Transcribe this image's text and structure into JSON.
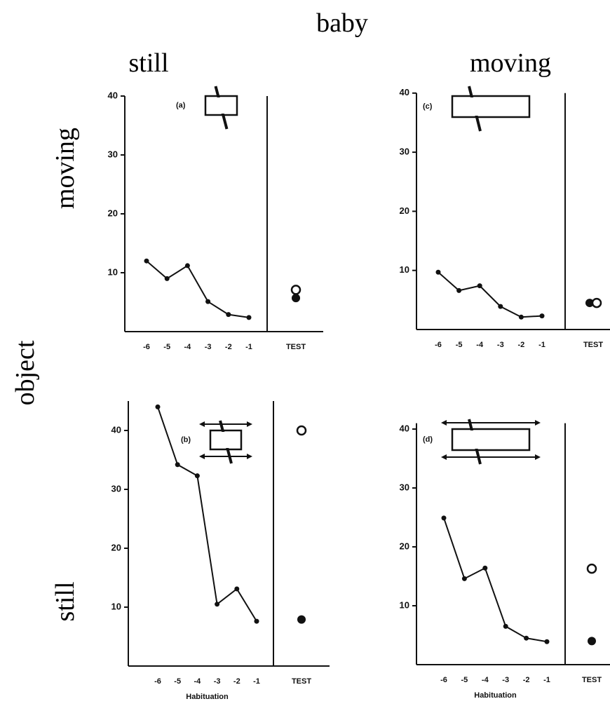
{
  "figure": {
    "title": "baby",
    "columns": [
      "still",
      "moving"
    ],
    "row_title": "object",
    "rows": [
      "moving",
      "still"
    ]
  },
  "chart_data": [
    {
      "type": "line",
      "label": "(a)",
      "x": [
        -6,
        -5,
        -4,
        -3,
        -2,
        -1
      ],
      "values": [
        12,
        9,
        11.2,
        5.1,
        2.9,
        2.4
      ],
      "test_label": "TEST",
      "test_open": 7.1,
      "test_filled": 5.7,
      "ylim": [
        0,
        40
      ],
      "yticks": [
        10,
        20,
        30,
        40
      ]
    },
    {
      "type": "line",
      "label": "(c)",
      "x": [
        -6,
        -5,
        -4,
        -3,
        -2,
        -1
      ],
      "values": [
        9.7,
        6.6,
        7.4,
        3.9,
        2.1,
        2.3
      ],
      "test_label": "TEST",
      "test_open": 4.5,
      "test_filled": 4.5,
      "ylim": [
        0,
        40
      ],
      "yticks": [
        10,
        20,
        30,
        40
      ]
    },
    {
      "type": "line",
      "label": "(b)",
      "x": [
        -6,
        -5,
        -4,
        -3,
        -2,
        -1
      ],
      "values": [
        44,
        34.2,
        32.3,
        10.5,
        13.1,
        7.6
      ],
      "test_label": "TEST",
      "test_open": 40,
      "test_filled": 7.9,
      "ylim": [
        0,
        45
      ],
      "yticks": [
        10,
        20,
        30,
        40
      ],
      "xlabel": "Habituation"
    },
    {
      "type": "line",
      "label": "(d)",
      "x": [
        -6,
        -5,
        -4,
        -3,
        -2,
        -1
      ],
      "values": [
        24.9,
        14.6,
        16.4,
        6.5,
        4.5,
        3.9
      ],
      "test_label": "TEST",
      "test_open": 16.3,
      "test_filled": 4,
      "ylim": [
        0,
        41
      ],
      "yticks": [
        10,
        20,
        30,
        40
      ],
      "xlabel": "Habituation"
    }
  ]
}
